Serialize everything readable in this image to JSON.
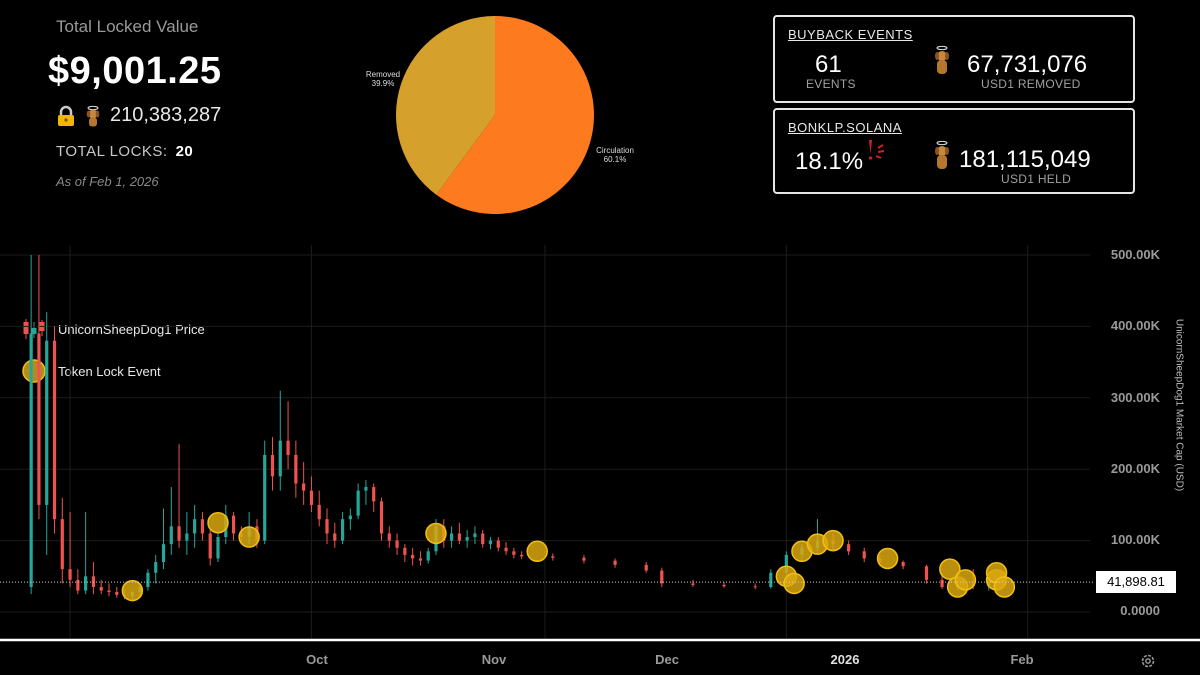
{
  "summary": {
    "tlv_label": "Total Locked Value",
    "tlv_value": "$9,001.25",
    "locked_tokens": "210,383,287",
    "total_locks_label": "TOTAL LOCKS:",
    "total_locks_value": "20",
    "as_of": "As of Feb 1, 2026"
  },
  "buyback": {
    "title": "BUYBACK EVENTS",
    "events_value": "61",
    "events_label": "EVENTS",
    "removed_value": "67,731,076",
    "removed_label": "USD1 REMOVED"
  },
  "bonklp": {
    "title": "BONKLP.SOLANA",
    "percent": "18.1%",
    "held_value": "181,115,049",
    "held_label": "USD1  HELD"
  },
  "pie": {
    "slices": [
      {
        "label": "Circulation",
        "pct": "60.1%",
        "value": 60.1,
        "color": "#fe7a1f"
      },
      {
        "label": "Removed",
        "pct": "39.9%",
        "value": 39.9,
        "color": "#d6a02c"
      }
    ]
  },
  "legend": {
    "price_label": "UnicornSheepDog1 Price",
    "lock_label": "Token Lock Event"
  },
  "axis": {
    "y_title": "UnicornSheepDog1 Market Cap (USD)",
    "y_ticks": [
      "500.00K",
      "400.00K",
      "300.00K",
      "200.00K",
      "100.00K",
      "0.0000"
    ],
    "x_ticks": [
      "Oct",
      "Nov",
      "Dec",
      "2026",
      "Feb"
    ],
    "current_price": "41,898.81"
  },
  "colors": {
    "up": "#26a69a",
    "down": "#ef5350",
    "lock": "#f2c012"
  },
  "chart_data": {
    "type": "candlestick",
    "ylim": [
      0,
      500000
    ],
    "ylabel": "UnicornSheepDog1 Market Cap (USD)",
    "x_range": [
      "2025-09-22",
      "2026-02-09"
    ],
    "current_price": 41898.81,
    "candles": [
      {
        "date": "2025-09-26",
        "open": 35000,
        "high": 500000,
        "low": 25000,
        "close": 390000
      },
      {
        "date": "2025-09-27",
        "open": 390000,
        "high": 500000,
        "low": 130000,
        "close": 150000
      },
      {
        "date": "2025-09-28",
        "open": 150000,
        "high": 420000,
        "low": 80000,
        "close": 380000
      },
      {
        "date": "2025-09-29",
        "open": 380000,
        "high": 400000,
        "low": 110000,
        "close": 130000
      },
      {
        "date": "2025-09-30",
        "open": 130000,
        "high": 160000,
        "low": 40000,
        "close": 60000
      },
      {
        "date": "2025-10-01",
        "open": 60000,
        "high": 140000,
        "low": 35000,
        "close": 45000
      },
      {
        "date": "2025-10-02",
        "open": 45000,
        "high": 60000,
        "low": 25000,
        "close": 30000
      },
      {
        "date": "2025-10-03",
        "open": 30000,
        "high": 140000,
        "low": 25000,
        "close": 50000
      },
      {
        "date": "2025-10-04",
        "open": 50000,
        "high": 70000,
        "low": 25000,
        "close": 35000
      },
      {
        "date": "2025-10-05",
        "open": 35000,
        "high": 45000,
        "low": 25000,
        "close": 30000
      },
      {
        "date": "2025-10-06",
        "open": 30000,
        "high": 40000,
        "low": 22000,
        "close": 28000
      },
      {
        "date": "2025-10-07",
        "open": 28000,
        "high": 35000,
        "low": 20000,
        "close": 24000
      },
      {
        "date": "2025-10-08",
        "open": 24000,
        "high": 32000,
        "low": 18000,
        "close": 22000
      },
      {
        "date": "2025-10-09",
        "open": 22000,
        "high": 30000,
        "low": 15000,
        "close": 28000
      },
      {
        "date": "2025-10-10",
        "open": 28000,
        "high": 40000,
        "low": 20000,
        "close": 35000
      },
      {
        "date": "2025-10-11",
        "open": 35000,
        "high": 60000,
        "low": 30000,
        "close": 55000
      },
      {
        "date": "2025-10-12",
        "open": 55000,
        "high": 80000,
        "low": 40000,
        "close": 70000
      },
      {
        "date": "2025-10-13",
        "open": 70000,
        "high": 145000,
        "low": 60000,
        "close": 95000
      },
      {
        "date": "2025-10-14",
        "open": 95000,
        "high": 175000,
        "low": 80000,
        "close": 120000
      },
      {
        "date": "2025-10-15",
        "open": 120000,
        "high": 235000,
        "low": 90000,
        "close": 100000
      },
      {
        "date": "2025-10-16",
        "open": 100000,
        "high": 140000,
        "low": 80000,
        "close": 110000
      },
      {
        "date": "2025-10-17",
        "open": 110000,
        "high": 150000,
        "low": 90000,
        "close": 130000
      },
      {
        "date": "2025-10-18",
        "open": 130000,
        "high": 140000,
        "low": 100000,
        "close": 110000
      },
      {
        "date": "2025-10-19",
        "open": 110000,
        "high": 115000,
        "low": 65000,
        "close": 75000
      },
      {
        "date": "2025-10-20",
        "open": 75000,
        "high": 110000,
        "low": 70000,
        "close": 105000
      },
      {
        "date": "2025-10-21",
        "open": 105000,
        "high": 150000,
        "low": 95000,
        "close": 135000
      },
      {
        "date": "2025-10-22",
        "open": 135000,
        "high": 140000,
        "low": 100000,
        "close": 110000
      },
      {
        "date": "2025-10-23",
        "open": 110000,
        "high": 120000,
        "low": 95000,
        "close": 105000
      },
      {
        "date": "2025-10-24",
        "open": 105000,
        "high": 140000,
        "low": 95000,
        "close": 120000
      },
      {
        "date": "2025-10-25",
        "open": 120000,
        "high": 130000,
        "low": 90000,
        "close": 100000
      },
      {
        "date": "2025-10-26",
        "open": 100000,
        "high": 240000,
        "low": 95000,
        "close": 220000
      },
      {
        "date": "2025-10-27",
        "open": 220000,
        "high": 245000,
        "low": 170000,
        "close": 190000
      },
      {
        "date": "2025-10-28",
        "open": 190000,
        "high": 310000,
        "low": 170000,
        "close": 240000
      },
      {
        "date": "2025-10-29",
        "open": 240000,
        "high": 295000,
        "low": 200000,
        "close": 220000
      },
      {
        "date": "2025-10-30",
        "open": 220000,
        "high": 240000,
        "low": 160000,
        "close": 180000
      },
      {
        "date": "2025-10-31",
        "open": 180000,
        "high": 210000,
        "low": 150000,
        "close": 170000
      },
      {
        "date": "2025-11-01",
        "open": 170000,
        "high": 190000,
        "low": 140000,
        "close": 150000
      },
      {
        "date": "2025-11-02",
        "open": 150000,
        "high": 170000,
        "low": 120000,
        "close": 130000
      },
      {
        "date": "2025-11-03",
        "open": 130000,
        "high": 145000,
        "low": 95000,
        "close": 110000
      },
      {
        "date": "2025-11-04",
        "open": 110000,
        "high": 125000,
        "low": 90000,
        "close": 100000
      },
      {
        "date": "2025-11-05",
        "open": 100000,
        "high": 140000,
        "low": 95000,
        "close": 130000
      },
      {
        "date": "2025-11-06",
        "open": 130000,
        "high": 145000,
        "low": 115000,
        "close": 135000
      },
      {
        "date": "2025-11-07",
        "open": 135000,
        "high": 180000,
        "low": 130000,
        "close": 170000
      },
      {
        "date": "2025-11-08",
        "open": 170000,
        "high": 185000,
        "low": 150000,
        "close": 175000
      },
      {
        "date": "2025-11-09",
        "open": 175000,
        "high": 180000,
        "low": 140000,
        "close": 155000
      },
      {
        "date": "2025-11-10",
        "open": 155000,
        "high": 160000,
        "low": 100000,
        "close": 110000
      },
      {
        "date": "2025-11-11",
        "open": 110000,
        "high": 120000,
        "low": 90000,
        "close": 100000
      },
      {
        "date": "2025-11-12",
        "open": 100000,
        "high": 110000,
        "low": 80000,
        "close": 90000
      },
      {
        "date": "2025-11-13",
        "open": 90000,
        "high": 95000,
        "low": 70000,
        "close": 80000
      },
      {
        "date": "2025-11-14",
        "open": 80000,
        "high": 90000,
        "low": 65000,
        "close": 75000
      },
      {
        "date": "2025-11-15",
        "open": 75000,
        "high": 85000,
        "low": 65000,
        "close": 72000
      },
      {
        "date": "2025-11-16",
        "open": 72000,
        "high": 90000,
        "low": 68000,
        "close": 85000
      },
      {
        "date": "2025-11-17",
        "open": 85000,
        "high": 130000,
        "low": 80000,
        "close": 120000
      },
      {
        "date": "2025-11-18",
        "open": 120000,
        "high": 130000,
        "low": 90000,
        "close": 100000
      },
      {
        "date": "2025-11-19",
        "open": 100000,
        "high": 120000,
        "low": 90000,
        "close": 110000
      },
      {
        "date": "2025-11-20",
        "open": 110000,
        "high": 125000,
        "low": 95000,
        "close": 100000
      },
      {
        "date": "2025-11-21",
        "open": 100000,
        "high": 115000,
        "low": 90000,
        "close": 105000
      },
      {
        "date": "2025-11-22",
        "open": 105000,
        "high": 120000,
        "low": 95000,
        "close": 110000
      },
      {
        "date": "2025-11-23",
        "open": 110000,
        "high": 115000,
        "low": 90000,
        "close": 95000
      },
      {
        "date": "2025-11-24",
        "open": 95000,
        "high": 105000,
        "low": 88000,
        "close": 100000
      },
      {
        "date": "2025-11-25",
        "open": 100000,
        "high": 105000,
        "low": 85000,
        "close": 90000
      },
      {
        "date": "2025-11-26",
        "open": 90000,
        "high": 98000,
        "low": 80000,
        "close": 85000
      },
      {
        "date": "2025-11-27",
        "open": 85000,
        "high": 90000,
        "low": 75000,
        "close": 80000
      },
      {
        "date": "2025-11-28",
        "open": 80000,
        "high": 85000,
        "low": 74000,
        "close": 78000
      },
      {
        "date": "2025-12-02",
        "open": 78000,
        "high": 82000,
        "low": 72000,
        "close": 76000
      },
      {
        "date": "2025-12-06",
        "open": 76000,
        "high": 80000,
        "low": 68000,
        "close": 72000
      },
      {
        "date": "2025-12-10",
        "open": 72000,
        "high": 75000,
        "low": 62000,
        "close": 66000
      },
      {
        "date": "2025-12-14",
        "open": 66000,
        "high": 70000,
        "low": 55000,
        "close": 58000
      },
      {
        "date": "2025-12-16",
        "open": 58000,
        "high": 62000,
        "low": 35000,
        "close": 40000
      },
      {
        "date": "2025-12-20",
        "open": 40000,
        "high": 45000,
        "low": 35000,
        "close": 38000
      },
      {
        "date": "2025-12-24",
        "open": 38000,
        "high": 42000,
        "low": 34000,
        "close": 36000
      },
      {
        "date": "2025-12-28",
        "open": 36000,
        "high": 40000,
        "low": 32000,
        "close": 35000
      },
      {
        "date": "2025-12-30",
        "open": 35000,
        "high": 60000,
        "low": 33000,
        "close": 55000
      },
      {
        "date": "2026-01-01",
        "open": 55000,
        "high": 85000,
        "low": 50000,
        "close": 80000
      },
      {
        "date": "2026-01-03",
        "open": 80000,
        "high": 95000,
        "low": 70000,
        "close": 90000
      },
      {
        "date": "2026-01-05",
        "open": 90000,
        "high": 130000,
        "low": 85000,
        "close": 100000
      },
      {
        "date": "2026-01-07",
        "open": 100000,
        "high": 110000,
        "low": 85000,
        "close": 95000
      },
      {
        "date": "2026-01-09",
        "open": 95000,
        "high": 100000,
        "low": 80000,
        "close": 85000
      },
      {
        "date": "2026-01-11",
        "open": 85000,
        "high": 90000,
        "low": 70000,
        "close": 75000
      },
      {
        "date": "2026-01-13",
        "open": 75000,
        "high": 80000,
        "low": 65000,
        "close": 70000
      },
      {
        "date": "2026-01-16",
        "open": 70000,
        "high": 72000,
        "low": 60000,
        "close": 64000
      },
      {
        "date": "2026-01-19",
        "open": 64000,
        "high": 66000,
        "low": 40000,
        "close": 45000
      },
      {
        "date": "2026-01-21",
        "open": 45000,
        "high": 55000,
        "low": 32000,
        "close": 35000
      },
      {
        "date": "2026-01-23",
        "open": 35000,
        "high": 50000,
        "low": 30000,
        "close": 40000
      },
      {
        "date": "2026-01-25",
        "open": 40000,
        "high": 60000,
        "low": 32000,
        "close": 36000
      },
      {
        "date": "2026-01-27",
        "open": 36000,
        "high": 55000,
        "low": 30000,
        "close": 42000
      },
      {
        "date": "2026-01-29",
        "open": 42000,
        "high": 58000,
        "low": 35000,
        "close": 41898
      }
    ],
    "lock_events": [
      {
        "date": "2025-10-09",
        "value": 30000
      },
      {
        "date": "2025-10-20",
        "value": 125000
      },
      {
        "date": "2025-10-24",
        "value": 105000
      },
      {
        "date": "2025-11-17",
        "value": 110000
      },
      {
        "date": "2025-11-30",
        "value": 85000
      },
      {
        "date": "2026-01-01",
        "value": 50000
      },
      {
        "date": "2026-01-02",
        "value": 40000
      },
      {
        "date": "2026-01-03",
        "value": 85000
      },
      {
        "date": "2026-01-05",
        "value": 95000
      },
      {
        "date": "2026-01-07",
        "value": 100000
      },
      {
        "date": "2026-01-14",
        "value": 75000
      },
      {
        "date": "2026-01-22",
        "value": 60000
      },
      {
        "date": "2026-01-23",
        "value": 35000
      },
      {
        "date": "2026-01-24",
        "value": 45000
      },
      {
        "date": "2026-01-28",
        "value": 45000
      },
      {
        "date": "2026-01-28",
        "value": 55000
      },
      {
        "date": "2026-01-29",
        "value": 35000
      }
    ]
  }
}
